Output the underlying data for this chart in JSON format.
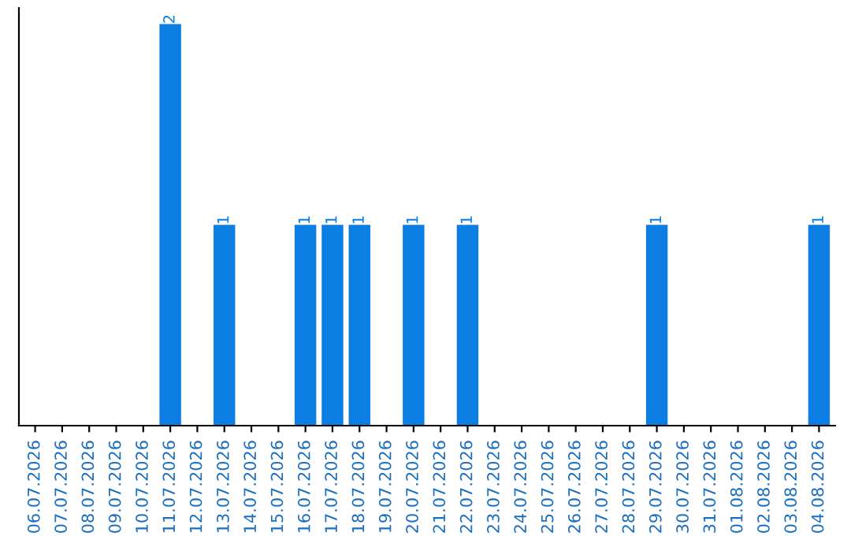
{
  "chart_data": {
    "type": "bar",
    "categories": [
      "06.07.2026",
      "07.07.2026",
      "08.07.2026",
      "09.07.2026",
      "10.07.2026",
      "11.07.2026",
      "12.07.2026",
      "13.07.2026",
      "14.07.2026",
      "15.07.2026",
      "16.07.2026",
      "17.07.2026",
      "18.07.2026",
      "19.07.2026",
      "20.07.2026",
      "21.07.2026",
      "22.07.2026",
      "23.07.2026",
      "24.07.2026",
      "25.07.2026",
      "26.07.2026",
      "27.07.2026",
      "28.07.2026",
      "29.07.2026",
      "30.07.2026",
      "31.07.2026",
      "01.08.2026",
      "02.08.2026",
      "03.08.2026",
      "04.08.2026"
    ],
    "values": [
      0,
      0,
      0,
      0,
      0,
      2,
      0,
      1,
      0,
      0,
      1,
      1,
      1,
      0,
      1,
      0,
      1,
      0,
      0,
      0,
      0,
      0,
      0,
      1,
      0,
      0,
      0,
      0,
      0,
      1
    ],
    "value_labels": [
      null,
      null,
      null,
      null,
      null,
      "2",
      null,
      "1",
      null,
      null,
      "1",
      "1",
      "1",
      null,
      "1",
      null,
      "1",
      null,
      null,
      null,
      null,
      null,
      null,
      "1",
      null,
      null,
      null,
      null,
      null,
      "1"
    ],
    "color": "#0b7de3",
    "tick_labels": "x",
    "grid": false
  }
}
